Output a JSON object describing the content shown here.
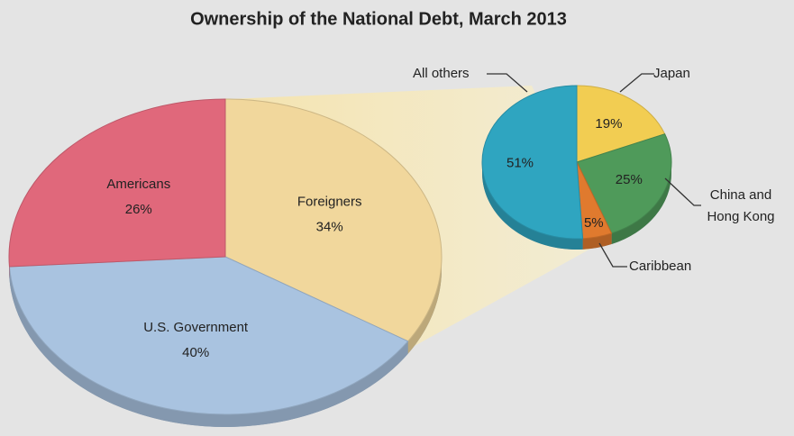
{
  "title": "Ownership of the National Debt, March 2013",
  "chart_data": [
    {
      "type": "pie",
      "categories": [
        "Foreigners",
        "U.S. Government",
        "Americans"
      ],
      "values": [
        34,
        40,
        26
      ],
      "value_labels": [
        "34%",
        "40%",
        "26%"
      ],
      "colors": [
        "#f1d79c",
        "#a9c3e0",
        "#e0687b"
      ]
    },
    {
      "type": "pie",
      "categories": [
        "Japan",
        "China and Hong Kong",
        "Caribbean",
        "All others"
      ],
      "values": [
        19,
        25,
        5,
        51
      ],
      "value_labels": [
        "19%",
        "25%",
        "5%",
        "51%"
      ],
      "colors": [
        "#f2cd52",
        "#4f9a5a",
        "#e07a2e",
        "#2fa5c0"
      ]
    }
  ]
}
